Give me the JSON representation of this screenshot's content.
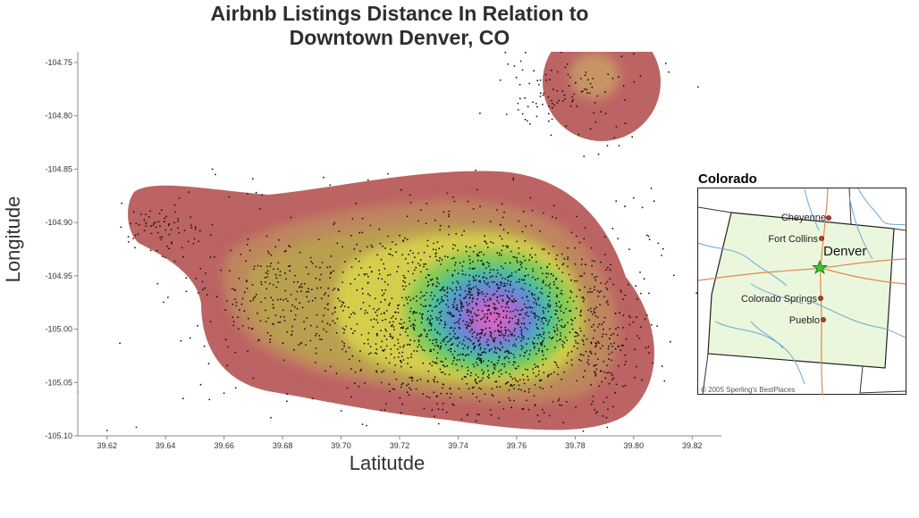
{
  "chart_data": {
    "type": "scatter",
    "title_lines": [
      "Airbnb Listings Distance In Relation to",
      "Downtown Denver, CO"
    ],
    "xlabel": "Latitutde",
    "ylabel": "Longitude",
    "xlim": [
      39.61,
      39.83
    ],
    "ylim": [
      -105.1,
      -104.74
    ],
    "x_ticks": [
      {
        "v": 39.62,
        "label": "39.62"
      },
      {
        "v": 39.64,
        "label": "39.64"
      },
      {
        "v": 39.66,
        "label": "39.66"
      },
      {
        "v": 39.68,
        "label": "39.68"
      },
      {
        "v": 39.7,
        "label": "39.70"
      },
      {
        "v": 39.72,
        "label": "39.72"
      },
      {
        "v": 39.74,
        "label": "39.74"
      },
      {
        "v": 39.76,
        "label": "39.76"
      },
      {
        "v": 39.78,
        "label": "39.78"
      },
      {
        "v": 39.8,
        "label": "39.80"
      },
      {
        "v": 39.82,
        "label": "39.82"
      }
    ],
    "y_ticks": [
      {
        "v": -104.75,
        "label": "-104.75"
      },
      {
        "v": -104.8,
        "label": "-104.80"
      },
      {
        "v": -104.85,
        "label": "-104.85"
      },
      {
        "v": -104.9,
        "label": "-104.90"
      },
      {
        "v": -104.95,
        "label": "-104.95"
      },
      {
        "v": -105.0,
        "label": "-105.00"
      },
      {
        "v": -105.05,
        "label": "-105.05"
      },
      {
        "v": -105.1,
        "label": "-105.10"
      }
    ],
    "grid": false,
    "density_overlay": true,
    "clusters": [
      {
        "x": 39.75,
        "y": -104.995,
        "sx": 0.022,
        "sy": 0.04,
        "n": 1300
      },
      {
        "x": 39.735,
        "y": -104.975,
        "sx": 0.03,
        "sy": 0.05,
        "n": 500
      },
      {
        "x": 39.68,
        "y": -104.965,
        "sx": 0.018,
        "sy": 0.028,
        "n": 230
      },
      {
        "x": 39.64,
        "y": -104.905,
        "sx": 0.007,
        "sy": 0.012,
        "n": 70
      },
      {
        "x": 39.775,
        "y": -104.775,
        "sx": 0.012,
        "sy": 0.02,
        "n": 110
      },
      {
        "x": 39.79,
        "y": -105.01,
        "sx": 0.006,
        "sy": 0.03,
        "n": 120
      }
    ],
    "outliers": [
      {
        "x": 39.625,
        "y": -104.882
      },
      {
        "x": 39.62,
        "y": -105.095
      },
      {
        "x": 39.63,
        "y": -105.092
      },
      {
        "x": 39.656,
        "y": -104.85
      },
      {
        "x": 39.657,
        "y": -104.855
      },
      {
        "x": 39.668,
        "y": -104.873
      },
      {
        "x": 39.671,
        "y": -104.872
      },
      {
        "x": 39.673,
        "y": -104.874
      },
      {
        "x": 39.66,
        "y": -105.06
      },
      {
        "x": 39.664,
        "y": -105.055
      },
      {
        "x": 39.67,
        "y": -105.046
      },
      {
        "x": 39.676,
        "y": -105.083
      },
      {
        "x": 39.646,
        "y": -105.065
      },
      {
        "x": 39.652,
        "y": -105.052
      },
      {
        "x": 39.655,
        "y": -105.066
      },
      {
        "x": 39.746,
        "y": -104.851
      },
      {
        "x": 39.783,
        "y": -104.838
      },
      {
        "x": 39.788,
        "y": -104.836
      },
      {
        "x": 39.791,
        "y": -104.828
      },
      {
        "x": 39.795,
        "y": -104.828
      },
      {
        "x": 39.794,
        "y": -104.88
      },
      {
        "x": 39.797,
        "y": -104.885
      },
      {
        "x": 39.8,
        "y": -104.877
      },
      {
        "x": 39.803,
        "y": -104.886
      },
      {
        "x": 39.806,
        "y": -104.868
      },
      {
        "x": 39.807,
        "y": -104.88
      },
      {
        "x": 39.812,
        "y": -104.759
      },
      {
        "x": 39.822,
        "y": -104.773
      },
      {
        "x": 39.8,
        "y": -104.742
      },
      {
        "x": 39.811,
        "y": -104.751
      },
      {
        "x": 39.61,
        "y": -105.059
      },
      {
        "x": 39.633,
        "y": -105.101
      }
    ]
  },
  "colors": {
    "background": "#ffffff",
    "points": "#111111",
    "density_low": "#b04a4a",
    "density_mid": "#8fc84a",
    "density_high": "#c060c8",
    "axis": "#333333"
  },
  "inset_map": {
    "title": "Colorado",
    "cities": [
      {
        "name": "Cheyenne"
      },
      {
        "name": "Fort Collins"
      },
      {
        "name": "Denver",
        "highlight": true
      },
      {
        "name": "Colorado Springs"
      },
      {
        "name": "Pueblo"
      }
    ],
    "credit": "© 2005 Sperling's BestPlaces",
    "state_fill": "#eaf7dc",
    "river_color": "#6aa9d8",
    "road_color": "#e08a50",
    "star_color": "#33cc33"
  }
}
